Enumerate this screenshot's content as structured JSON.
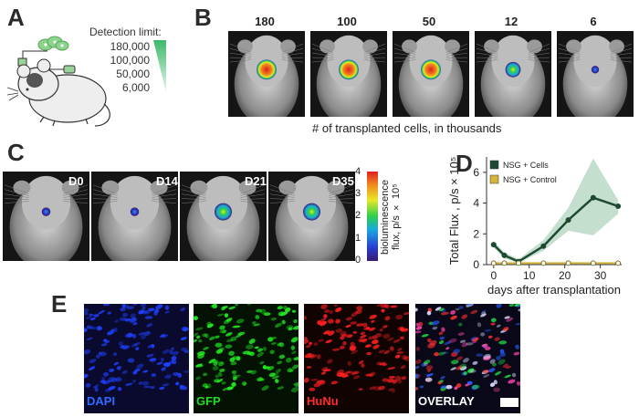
{
  "panels": [
    "A",
    "B",
    "C",
    "D",
    "E"
  ],
  "panel_a": {
    "detection_title": "Detection limit:",
    "limits": [
      "180,000",
      "100,000",
      "50,000",
      "6,000"
    ]
  },
  "panel_b": {
    "counts": [
      "180",
      "100",
      "50",
      "12",
      "6"
    ],
    "caption": "# of transplanted cells, in thousands"
  },
  "panel_c": {
    "days": [
      "D0",
      "D14",
      "D21",
      "D35"
    ],
    "colorbar_label": "bioluminescence flux, p/s × 10⁵",
    "colorbar_ticks": [
      "4",
      "3",
      "2",
      "1",
      "0"
    ]
  },
  "chart_data": {
    "type": "line",
    "xlabel": "days after transplantation",
    "ylabel": "Total Flux , p/s × 10⁵",
    "xlim": [
      -2,
      36
    ],
    "ylim": [
      0,
      7
    ],
    "xticks": [
      "0",
      "10",
      "20",
      "30"
    ],
    "yticks": [
      "0",
      "2",
      "4",
      "6"
    ],
    "legend_position": "top-left",
    "series": [
      {
        "name": "NSG + Cells",
        "color": "#1e4a32",
        "x": [
          0,
          3,
          7,
          14,
          21,
          28,
          35
        ],
        "y": [
          1.3,
          0.6,
          0.2,
          1.2,
          2.9,
          4.35,
          3.8
        ],
        "band_upper": [
          1.5,
          0.8,
          0.35,
          1.6,
          3.7,
          6.9,
          4.2
        ],
        "band_lower": [
          1.1,
          0.4,
          0.1,
          0.9,
          2.2,
          1.9,
          3.3
        ]
      },
      {
        "name": "NSG + Control",
        "color": "#d4b43a",
        "x": [
          0,
          3,
          7,
          14,
          21,
          28,
          35
        ],
        "y": [
          0.1,
          0.1,
          0.1,
          0.1,
          0.1,
          0.1,
          0.1
        ]
      }
    ]
  },
  "panel_e": {
    "labels": [
      "DAPI",
      "GFP",
      "HuNu",
      "OVERLAY"
    ],
    "label_colors": [
      "#2f6bff",
      "#22dd22",
      "#ff2a2a",
      "#ffffff"
    ]
  }
}
